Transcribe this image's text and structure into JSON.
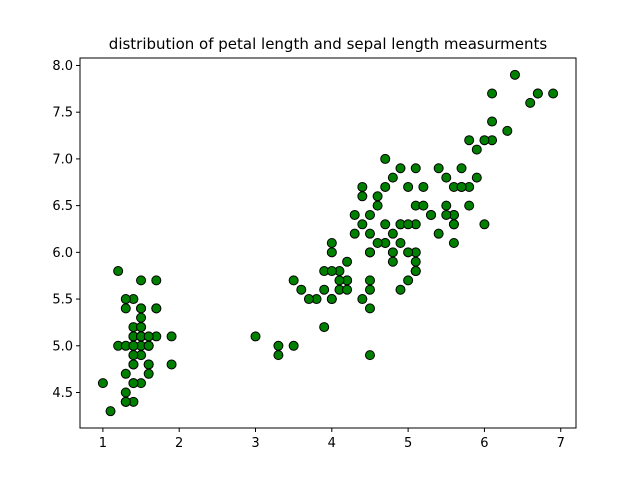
{
  "chart_data": {
    "type": "scatter",
    "title": "distribution of petal length and sepal length measurments",
    "xlabel": "",
    "ylabel": "",
    "xlim": [
      0.7,
      7.2
    ],
    "ylim": [
      4.12,
      8.08
    ],
    "x_ticks": [
      1,
      2,
      3,
      4,
      5,
      6,
      7
    ],
    "y_ticks": [
      4.5,
      5.0,
      5.5,
      6.0,
      6.5,
      7.0,
      7.5,
      8.0
    ],
    "x_tick_labels": [
      "1",
      "2",
      "3",
      "4",
      "5",
      "6",
      "7"
    ],
    "y_tick_labels": [
      "4.5",
      "5.0",
      "5.5",
      "6.0",
      "6.5",
      "7.0",
      "7.5",
      "8.0"
    ],
    "grid": false,
    "marker_color": "#008000",
    "marker_edge_color": "#000000",
    "series": [
      {
        "x": [
          1.4,
          1.4,
          1.3,
          1.5,
          1.4,
          1.7,
          1.4,
          1.5,
          1.4,
          1.5,
          1.5,
          1.6,
          1.4,
          1.1,
          1.2,
          1.5,
          1.3,
          1.4,
          1.7,
          1.5,
          1.7,
          1.5,
          1.0,
          1.7,
          1.9,
          1.6,
          1.6,
          1.5,
          1.4,
          1.6,
          1.6,
          1.5,
          1.5,
          1.4,
          1.5,
          1.2,
          1.3,
          1.4,
          1.3,
          1.5,
          1.3,
          1.3,
          1.3,
          1.6,
          1.9,
          1.4,
          1.6,
          1.4,
          1.5,
          1.4,
          4.7,
          4.5,
          4.9,
          4.0,
          4.6,
          4.5,
          4.7,
          3.3,
          4.6,
          3.9,
          3.5,
          4.2,
          4.0,
          4.7,
          3.6,
          4.4,
          4.5,
          4.1,
          4.5,
          3.9,
          4.8,
          4.0,
          4.9,
          4.7,
          4.3,
          4.4,
          4.8,
          5.0,
          4.5,
          3.5,
          3.8,
          3.7,
          3.9,
          5.1,
          4.5,
          4.5,
          4.7,
          4.4,
          4.1,
          4.0,
          4.4,
          4.6,
          4.0,
          3.3,
          4.2,
          4.2,
          4.2,
          4.3,
          3.0,
          4.1,
          6.0,
          5.1,
          5.9,
          5.6,
          5.8,
          6.6,
          4.5,
          6.3,
          5.8,
          6.1,
          5.1,
          5.3,
          5.5,
          5.0,
          5.1,
          5.3,
          5.5,
          6.7,
          6.9,
          5.0,
          5.7,
          4.9,
          6.7,
          4.9,
          5.7,
          6.0,
          4.8,
          4.9,
          5.6,
          5.8,
          6.1,
          6.4,
          5.6,
          5.1,
          5.6,
          6.1,
          5.6,
          5.5,
          4.8,
          5.4,
          5.6,
          5.1,
          5.1,
          5.9,
          5.7,
          5.2,
          5.0,
          5.2,
          5.4,
          5.1
        ],
        "y": [
          5.1,
          4.9,
          4.7,
          4.6,
          5.0,
          5.4,
          4.6,
          5.0,
          4.4,
          4.9,
          5.4,
          4.8,
          4.8,
          4.3,
          5.8,
          5.7,
          5.4,
          5.1,
          5.7,
          5.1,
          5.4,
          5.1,
          4.6,
          5.1,
          4.8,
          5.0,
          5.0,
          5.2,
          5.2,
          4.7,
          4.8,
          5.4,
          5.2,
          5.5,
          4.9,
          5.0,
          5.5,
          4.9,
          4.4,
          5.1,
          5.0,
          4.5,
          4.4,
          5.0,
          5.1,
          4.8,
          5.1,
          4.6,
          5.3,
          5.0,
          7.0,
          6.4,
          6.9,
          5.5,
          6.5,
          5.7,
          6.3,
          4.9,
          6.6,
          5.2,
          5.0,
          5.9,
          6.0,
          6.1,
          5.6,
          6.7,
          5.6,
          5.8,
          6.2,
          5.6,
          5.9,
          6.1,
          6.3,
          6.1,
          6.4,
          6.6,
          6.8,
          6.7,
          6.0,
          5.7,
          5.5,
          5.5,
          5.8,
          6.0,
          5.4,
          6.0,
          6.7,
          6.3,
          5.6,
          5.5,
          5.5,
          6.1,
          5.8,
          5.0,
          5.6,
          5.7,
          5.7,
          6.2,
          5.1,
          5.7,
          6.3,
          5.8,
          7.1,
          6.3,
          6.5,
          7.6,
          4.9,
          7.3,
          6.7,
          7.2,
          6.5,
          6.4,
          6.8,
          5.7,
          5.8,
          6.4,
          6.5,
          7.7,
          7.7,
          6.0,
          6.9,
          5.6,
          7.7,
          6.3,
          6.7,
          7.2,
          6.2,
          6.1,
          6.4,
          7.2,
          7.4,
          7.9,
          6.4,
          6.3,
          6.1,
          7.7,
          6.3,
          6.4,
          6.0,
          6.9,
          6.7,
          6.9,
          5.8,
          6.8,
          6.7,
          6.7,
          6.3,
          6.5,
          6.2,
          5.9
        ]
      }
    ]
  }
}
